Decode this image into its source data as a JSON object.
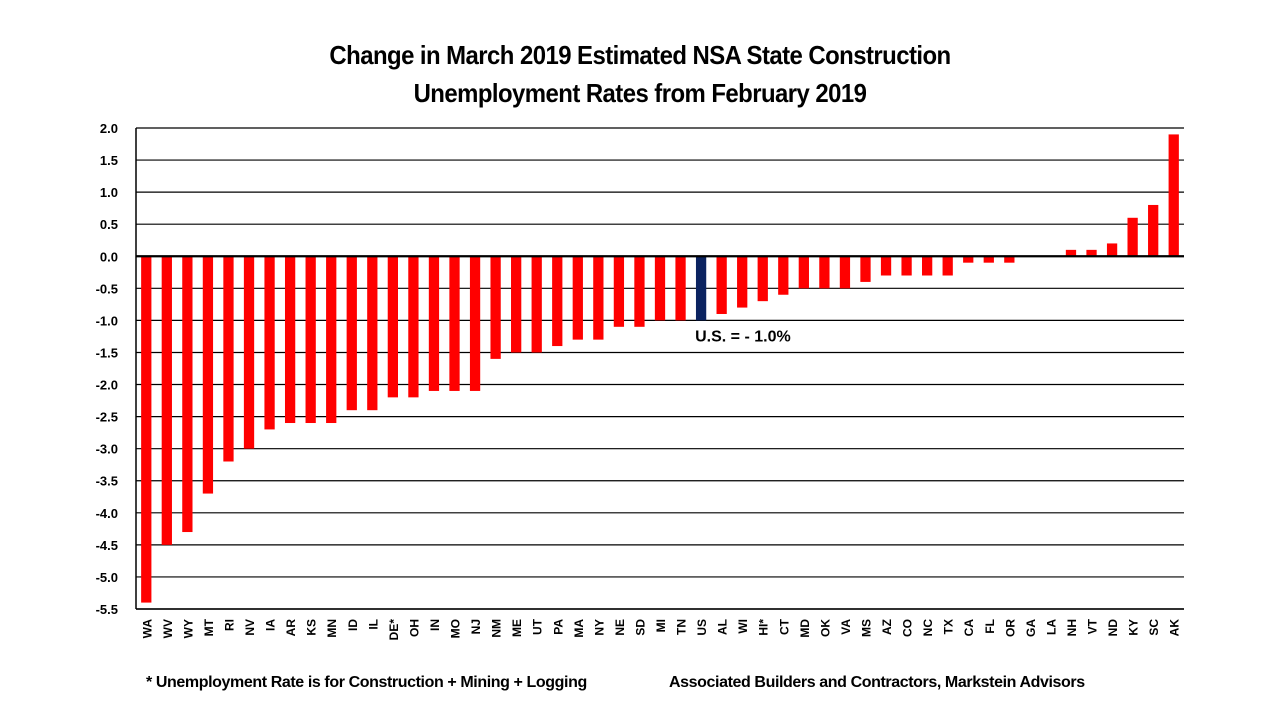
{
  "chart_data": {
    "type": "bar",
    "title": "Change in March 2019 Estimated NSA State Construction Unemployment Rates from February 2019",
    "title_lines": [
      "Change in March 2019 Estimated NSA State Construction",
      "Unemployment Rates from February 2019"
    ],
    "xlabel": "",
    "ylabel": "",
    "ylim": [
      -5.5,
      2.0
    ],
    "ytick_step": 0.5,
    "yticks": [
      "2.0",
      "1.5",
      "1.0",
      "0.5",
      "0.0",
      "-0.5",
      "-1.0",
      "-1.5",
      "-2.0",
      "-2.5",
      "-3.0",
      "-3.5",
      "-4.0",
      "-4.5",
      "-5.0",
      "-5.5"
    ],
    "grid": true,
    "legend": "none",
    "categories": [
      "WA",
      "WV",
      "WY",
      "MT",
      "RI",
      "NV",
      "IA",
      "AR",
      "KS",
      "MN",
      "ID",
      "IL",
      "DE*",
      "OH",
      "IN",
      "MO",
      "NJ",
      "NM",
      "ME",
      "UT",
      "PA",
      "MA",
      "NY",
      "NE",
      "SD",
      "MI",
      "TN",
      "US",
      "AL",
      "WI",
      "HI*",
      "CT",
      "MD",
      "OK",
      "VA",
      "MS",
      "AZ",
      "CO",
      "NC",
      "TX",
      "CA",
      "FL",
      "OR",
      "GA",
      "LA",
      "NH",
      "VT",
      "ND",
      "KY",
      "SC",
      "AK"
    ],
    "values": [
      -5.4,
      -4.5,
      -4.3,
      -3.7,
      -3.2,
      -3.0,
      -2.7,
      -2.6,
      -2.6,
      -2.6,
      -2.4,
      -2.4,
      -2.2,
      -2.2,
      -2.1,
      -2.1,
      -2.1,
      -1.6,
      -1.5,
      -1.5,
      -1.4,
      -1.3,
      -1.3,
      -1.1,
      -1.1,
      -1.0,
      -1.0,
      -1.0,
      -0.9,
      -0.8,
      -0.7,
      -0.6,
      -0.5,
      -0.5,
      -0.5,
      -0.4,
      -0.3,
      -0.3,
      -0.3,
      -0.3,
      -0.1,
      -0.1,
      -0.1,
      0.0,
      0.0,
      0.1,
      0.1,
      0.2,
      0.6,
      0.8,
      1.9
    ],
    "highlight_category": "US",
    "annotations": [
      {
        "text": "U.S. = - 1.0%",
        "category": "US",
        "y": -1.3
      }
    ],
    "colors": {
      "bar": "#ff0000",
      "highlight": "#0b2360",
      "grid": "#000000",
      "text": "#000000"
    }
  },
  "footer": {
    "note": "* Unemployment Rate is for Construction + Mining + Logging",
    "source": "Associated Builders and Contractors, Markstein Advisors"
  }
}
